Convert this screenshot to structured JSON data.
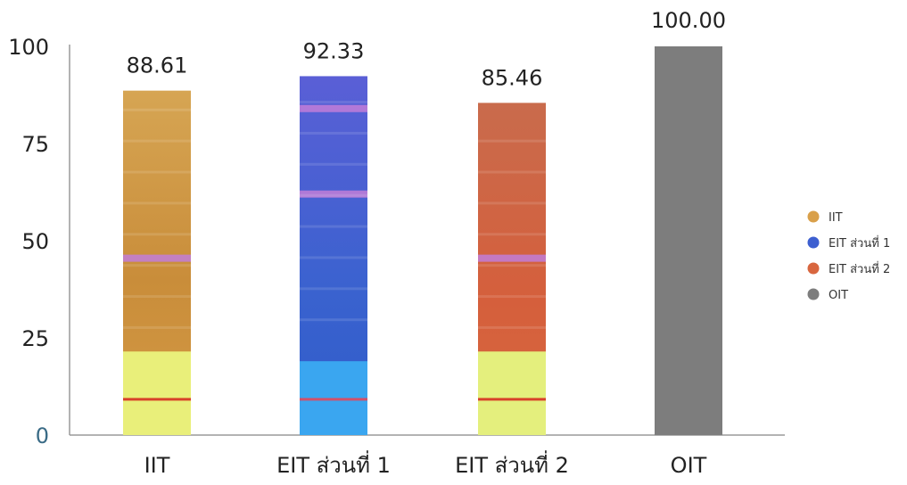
{
  "chart_data": {
    "type": "bar",
    "title": "",
    "xlabel": "",
    "ylabel": "",
    "ylim": [
      0,
      100
    ],
    "yticks": [
      "0",
      "25",
      "50",
      "75",
      "100"
    ],
    "grid": false,
    "legend_position": "right",
    "categories": [
      "IIT",
      "EIT ส่วนที่ 1",
      "EIT ส่วนที่ 2",
      "OIT"
    ],
    "values": [
      88.61,
      92.33,
      85.46,
      100.0
    ],
    "data_labels": [
      "88.61",
      "92.33",
      "85.46",
      "100.00"
    ],
    "colors": [
      "#d9a04a",
      "#3d5fd0",
      "#d8663f",
      "#7d7d7d"
    ],
    "legend": [
      {
        "label": "IIT",
        "color": "#d9a04a"
      },
      {
        "label": "EIT ส่วนที่ 1",
        "color": "#3d5fd0"
      },
      {
        "label": "EIT ส่วนที่ 2",
        "color": "#d8663f"
      },
      {
        "label": "OIT",
        "color": "#7d7d7d"
      }
    ]
  }
}
